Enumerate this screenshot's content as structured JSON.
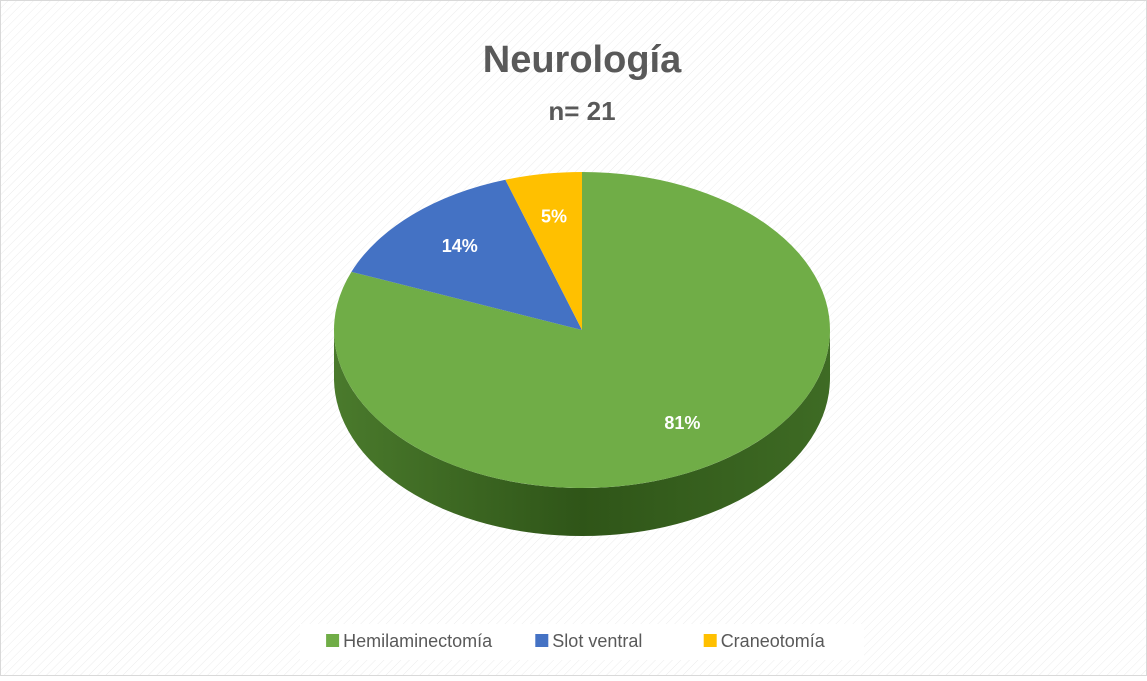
{
  "chart_data": {
    "type": "pie",
    "title": "Neurología",
    "subtitle": "n= 21",
    "categories": [
      "Hemilaminectomía",
      "Slot ventral",
      "Craneotomía"
    ],
    "values": [
      81,
      14,
      5
    ],
    "value_labels": [
      "81%",
      "14%",
      "5%"
    ],
    "colors": [
      "#70ad47",
      "#4472c4",
      "#ffc000"
    ],
    "legend": "bottom"
  }
}
